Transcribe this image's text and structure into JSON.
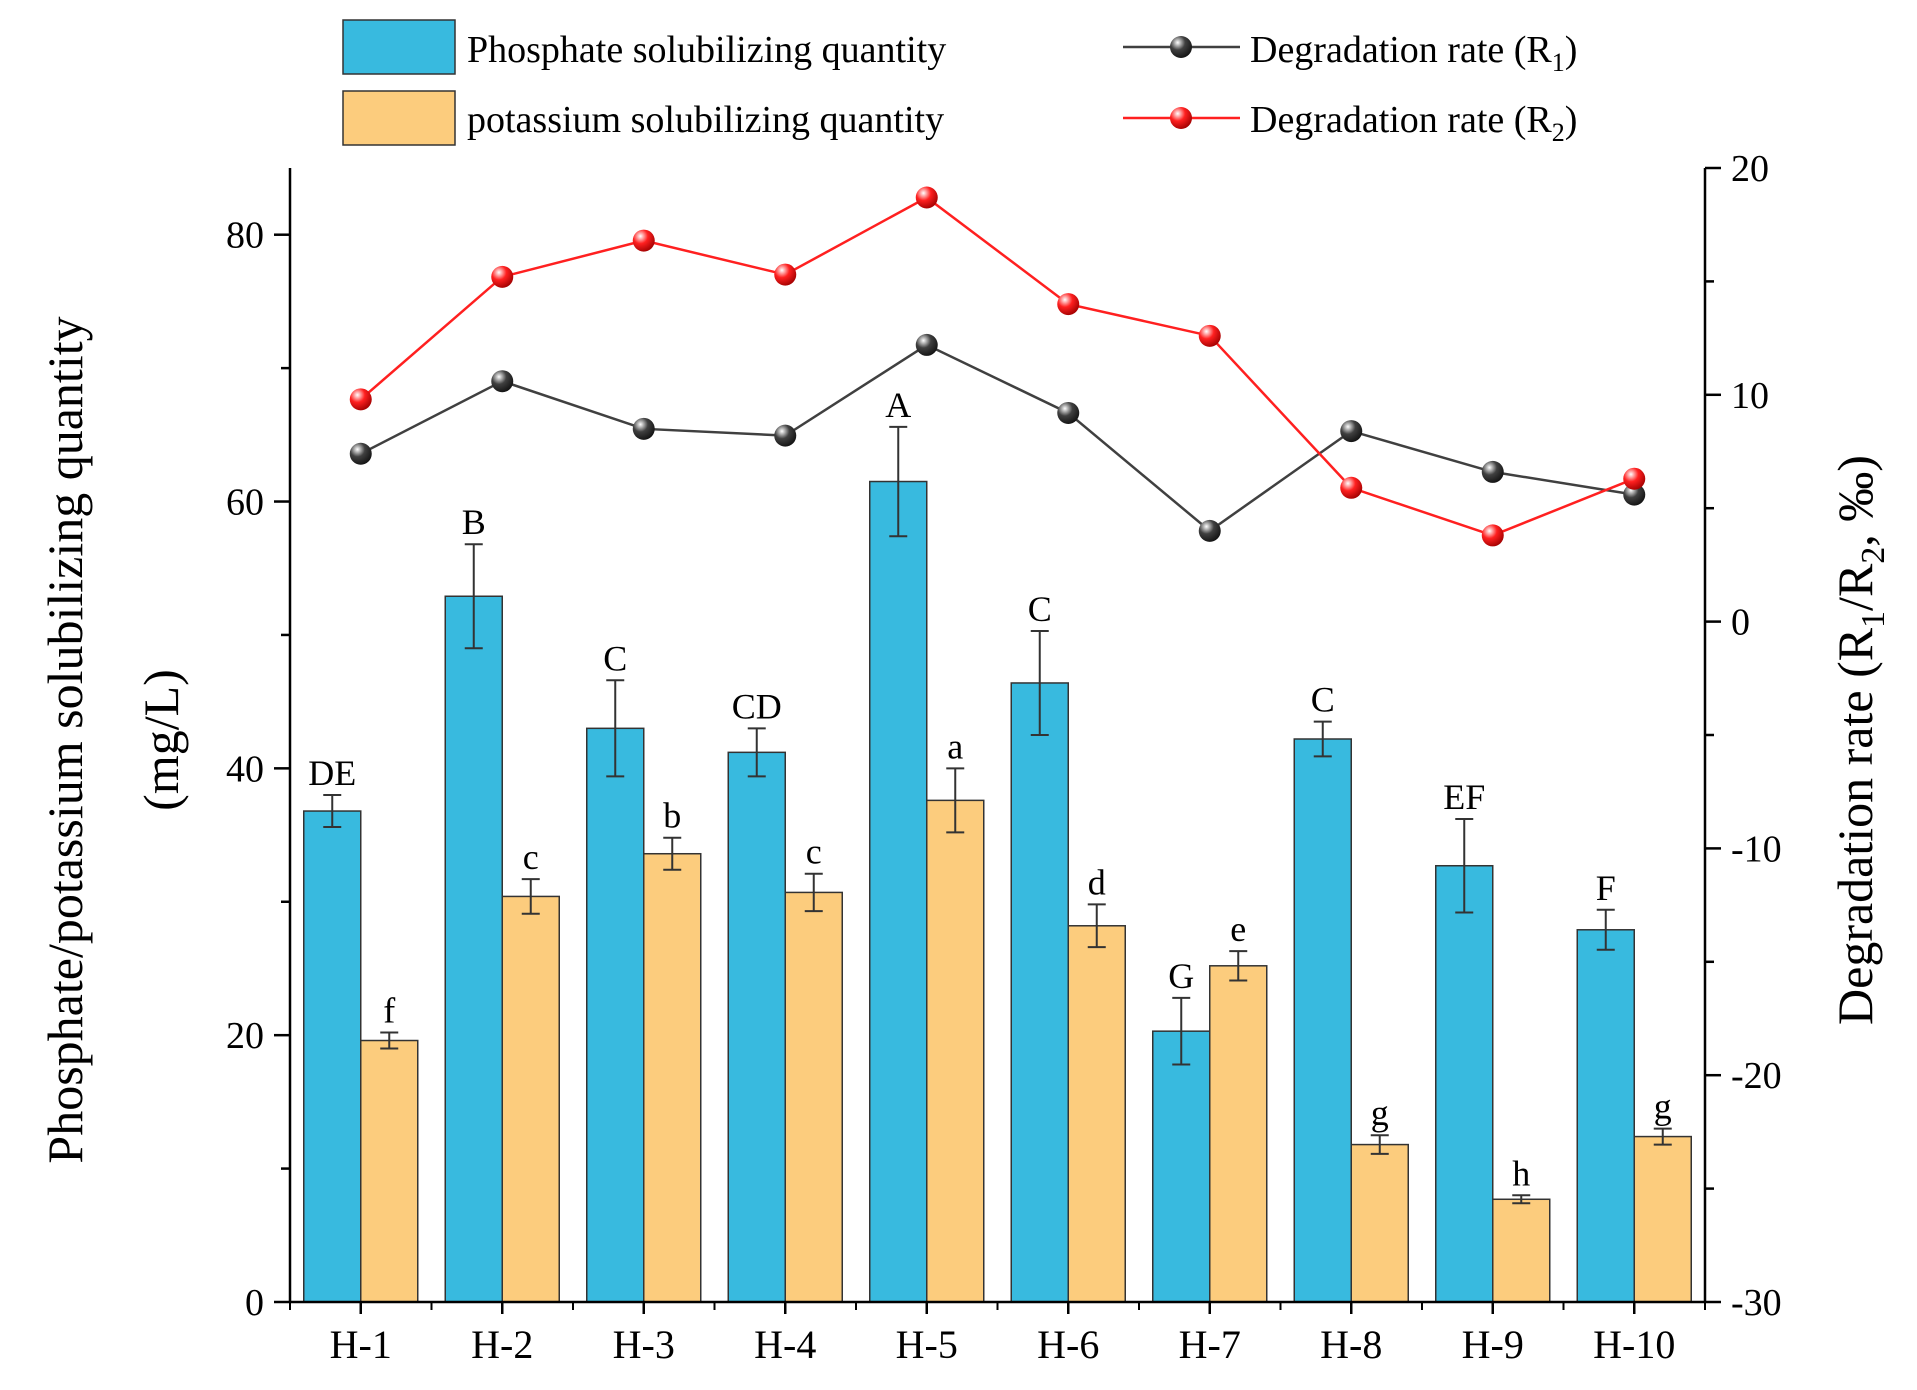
{
  "chart_data": {
    "type": "bar+line",
    "categories": [
      "H-1",
      "H-2",
      "H-3",
      "H-4",
      "H-5",
      "H-6",
      "H-7",
      "H-8",
      "H-9",
      "H-10"
    ],
    "bars": [
      {
        "name": "Phosphate solubilizing quantity",
        "color": "#38BADF",
        "values": [
          36.8,
          52.9,
          43.0,
          41.2,
          61.5,
          46.4,
          20.3,
          42.2,
          32.7,
          27.9
        ],
        "errors": [
          1.2,
          3.9,
          3.6,
          1.8,
          4.1,
          3.9,
          2.5,
          1.3,
          3.5,
          1.5
        ],
        "letters": [
          "DE",
          "B",
          "C",
          "CD",
          "A",
          "C",
          "G",
          "C",
          "EF",
          "F"
        ]
      },
      {
        "name": "potassium solubilizing quantity",
        "color": "#FCCC7D",
        "values": [
          19.6,
          30.4,
          33.6,
          30.7,
          37.6,
          28.2,
          25.2,
          11.8,
          7.7,
          12.4
        ],
        "errors": [
          0.6,
          1.3,
          1.2,
          1.4,
          2.4,
          1.6,
          1.1,
          0.7,
          0.3,
          0.6
        ],
        "letters": [
          "f",
          "c",
          "b",
          "c",
          "a",
          "d",
          "e",
          "g",
          "h",
          "g"
        ]
      }
    ],
    "lines": [
      {
        "name": "Degradation rate (R1)",
        "label_main": "Degradation rate (R",
        "label_sub": "1",
        "label_end": ")",
        "color": "#404040",
        "values": [
          7.4,
          10.6,
          8.5,
          8.2,
          12.2,
          9.2,
          4.0,
          8.4,
          6.6,
          5.6
        ]
      },
      {
        "name": "Degradation rate (R2)",
        "label_main": "Degradation rate (R",
        "label_sub": "2",
        "label_end": ")",
        "color": "#FF2020",
        "values": [
          9.8,
          15.2,
          16.8,
          15.3,
          18.7,
          14.0,
          12.6,
          5.9,
          3.8,
          6.3
        ]
      }
    ],
    "y_left": {
      "label_line1": "Phosphate/potassium solubilizing quantity",
      "label_line2": "(mg/L)",
      "range": [
        0,
        85
      ],
      "ticks": [
        0,
        20,
        40,
        60,
        80
      ]
    },
    "y_right": {
      "label": "Degradation rate (R1/R2, ‰)",
      "label_pre": "Degradation rate (R",
      "label_sub1": "1",
      "label_mid": "/R",
      "label_sub2": "2",
      "label_post": ", ‰)",
      "range": [
        -30,
        20
      ],
      "ticks": [
        -30,
        -20,
        -10,
        0,
        10,
        20
      ]
    },
    "legend_position": "top"
  }
}
